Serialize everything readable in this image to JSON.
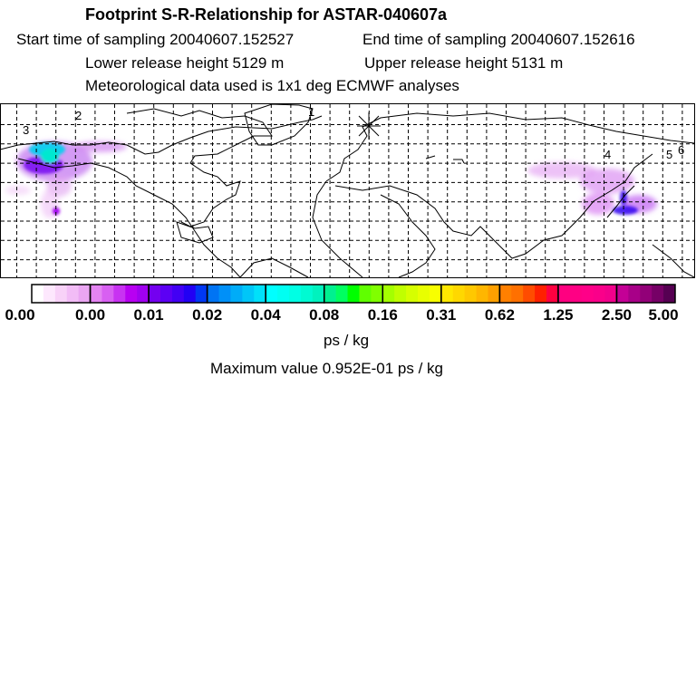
{
  "header": {
    "title": "Footprint S-R-Relationship for ASTAR-040607a",
    "start_time": "Start time of sampling 20040607.152527",
    "end_time": "End time of sampling 20040607.152616",
    "lower_height": "Lower release height 5129 m",
    "upper_height": "Upper release height 5131 m",
    "met_data": "Meteorological data used is 1x1 deg ECMWF analyses"
  },
  "map": {
    "track_labels": [
      "1",
      "2",
      "3",
      "4",
      "5",
      "6"
    ]
  },
  "colorbar": {
    "ticks": [
      "0.00",
      "0.00",
      "0.01",
      "0.02",
      "0.04",
      "0.08",
      "0.16",
      "0.31",
      "0.62",
      "1.25",
      "2.50",
      "5.00"
    ],
    "segments": [
      [
        "#ffffff",
        "#fde8fd",
        "#f8d2f8",
        "#f2bcf6",
        "#eaa6f2"
      ],
      [
        "#e484f2",
        "#d860f2",
        "#c832f2",
        "#b800f2",
        "#a000f0"
      ],
      [
        "#7400f0",
        "#5c00f4",
        "#4200f4",
        "#2200f4",
        "#0038f4"
      ],
      [
        "#0074f4",
        "#0090f8",
        "#00acf8",
        "#00c6f8",
        "#00e0fa"
      ],
      [
        "#00ffff",
        "#00fff2",
        "#00ffe4",
        "#00fad2",
        "#00f2be"
      ],
      [
        "#00f090",
        "#00ff60",
        "#00ff00",
        "#60ff00",
        "#80ff00"
      ],
      [
        "#a4ff00",
        "#c0ff00",
        "#d6ff00",
        "#e8ff00",
        "#f8ff00"
      ],
      [
        "#ffe800",
        "#ffd800",
        "#ffc800",
        "#ffb600",
        "#ffa000"
      ],
      [
        "#ff8000",
        "#ff7000",
        "#ff4c00",
        "#ff2000",
        "#ff0040"
      ],
      [
        "#ff0080",
        "#ff0084",
        "#ff0088",
        "#fa008a",
        "#f2008c"
      ],
      [
        "#c40096",
        "#a80088",
        "#920078",
        "#760066",
        "#560052"
      ]
    ],
    "unit": "ps / kg",
    "max_value": "Maximum value  0.952E-01 ps / kg"
  }
}
